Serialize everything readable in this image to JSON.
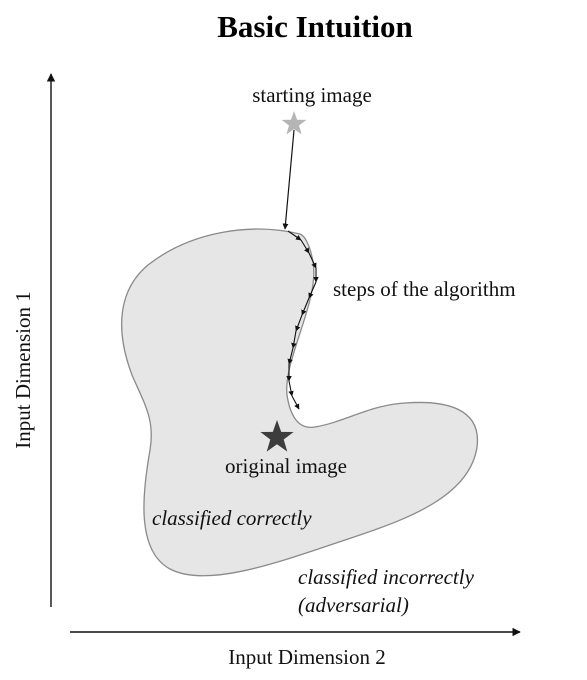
{
  "title": "Basic Intuition",
  "axes": {
    "y_label": "Input Dimension 1",
    "x_label": "Input Dimension 2"
  },
  "annotations": {
    "starting_image": "starting image",
    "steps": "steps of the algorithm",
    "original_image": "original image",
    "classified_correctly": "classified correctly",
    "classified_incorrectly_line1": "classified incorrectly",
    "classified_incorrectly_line2": "(adversarial)"
  },
  "colors": {
    "region_fill": "#e6e6e6",
    "region_stroke": "#8a8a8a",
    "start_star": "#b5b5b5",
    "original_star": "#3d3d3d",
    "arrows": "#111111"
  }
}
